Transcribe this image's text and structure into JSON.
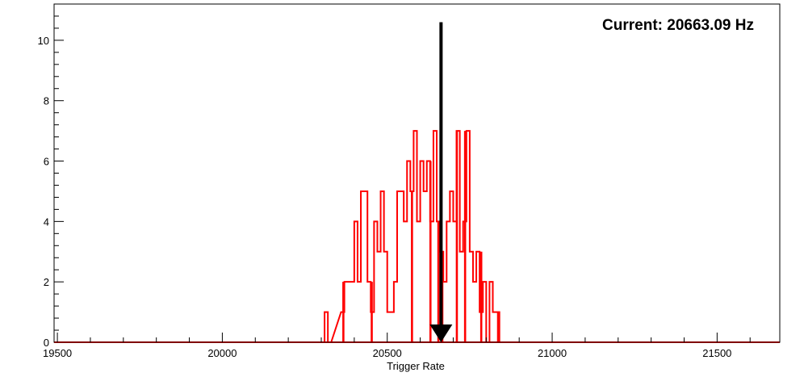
{
  "chart_data": {
    "type": "histogram",
    "title": "",
    "xlabel": "Trigger Rate",
    "ylabel": "",
    "xlim": [
      19490,
      21690
    ],
    "ylim": [
      0,
      11.2
    ],
    "bin_width": 10,
    "x_ticks": [
      19500,
      20000,
      20500,
      21000,
      21500
    ],
    "x_tick_labels": [
      "19500",
      "20000",
      "20500",
      "21000",
      "21500"
    ],
    "y_ticks": [
      0,
      2,
      4,
      6,
      8,
      10
    ],
    "y_tick_labels": [
      "0",
      "2",
      "4",
      "6",
      "8",
      "10"
    ],
    "series": [
      {
        "color": "#ff0000",
        "points": [
          [
            20310,
            1
          ],
          [
            20320,
            0
          ],
          [
            20360,
            1
          ],
          [
            20370,
            2
          ],
          [
            20380,
            2
          ],
          [
            20390,
            2
          ],
          [
            20400,
            4
          ],
          [
            20410,
            2
          ],
          [
            20420,
            5
          ],
          [
            20430,
            5
          ],
          [
            20440,
            2
          ],
          [
            20450,
            1
          ],
          [
            20460,
            4
          ],
          [
            20470,
            3
          ],
          [
            20480,
            5
          ],
          [
            20490,
            3
          ],
          [
            20500,
            1
          ],
          [
            20510,
            1
          ],
          [
            20520,
            2
          ],
          [
            20530,
            5
          ],
          [
            20540,
            5
          ],
          [
            20550,
            4
          ],
          [
            20560,
            6
          ],
          [
            20570,
            5
          ],
          [
            20580,
            7
          ],
          [
            20590,
            4
          ],
          [
            20600,
            6
          ],
          [
            20610,
            5
          ],
          [
            20620,
            6
          ],
          [
            20630,
            4
          ],
          [
            20640,
            7
          ],
          [
            20650,
            4
          ],
          [
            20660,
            3
          ],
          [
            20670,
            2
          ],
          [
            20680,
            4
          ],
          [
            20690,
            5
          ],
          [
            20700,
            4
          ],
          [
            20710,
            7
          ],
          [
            20720,
            3
          ],
          [
            20730,
            4
          ],
          [
            20740,
            7
          ],
          [
            20750,
            3
          ],
          [
            20760,
            2
          ],
          [
            20770,
            3
          ],
          [
            20780,
            1
          ],
          [
            20790,
            2
          ],
          [
            20800,
            0
          ],
          [
            20810,
            2
          ],
          [
            20820,
            1
          ],
          [
            20830,
            1
          ],
          [
            20840,
            0
          ]
        ],
        "filled_spikes": [
          [
            20362,
            20372
          ],
          [
            20448,
            20458
          ],
          [
            20572,
            20578
          ],
          [
            20628,
            20634
          ],
          [
            20652,
            20658
          ],
          [
            20664,
            20670
          ],
          [
            20708,
            20714
          ],
          [
            20732,
            20740
          ],
          [
            20780,
            20790
          ],
          [
            20832,
            20840
          ]
        ]
      }
    ],
    "annotations": [
      {
        "text": "Current: 20663.09 Hz",
        "position": "top-right"
      }
    ],
    "marker": {
      "x": 20663.09,
      "y_top": 10.6,
      "y_bottom": 0,
      "color": "#000000",
      "style": "down-arrow"
    },
    "grid": false,
    "legend": "none"
  }
}
